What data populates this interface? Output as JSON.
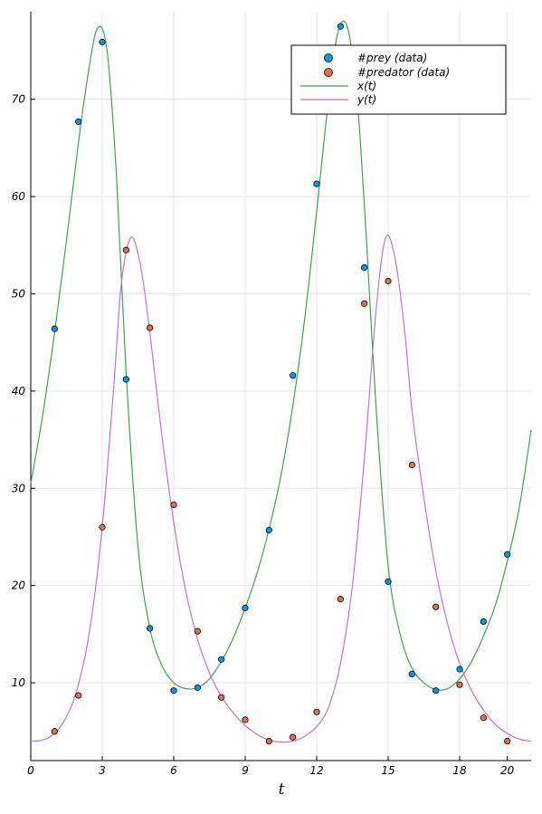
{
  "chart_data": {
    "type": "scatter",
    "xlabel": "t",
    "ylabel": "",
    "xlim": [
      0,
      21
    ],
    "ylim": [
      2,
      79
    ],
    "x_ticks": [
      0,
      3,
      6,
      9,
      12,
      15,
      18,
      20
    ],
    "y_ticks": [
      10,
      20,
      30,
      40,
      50,
      60,
      70
    ],
    "x_tick_labels": [
      "0",
      "3",
      "6",
      "9",
      "12",
      "15",
      "18",
      "20"
    ],
    "y_tick_labels": [
      "10",
      "20",
      "30",
      "40",
      "50",
      "60",
      "70"
    ],
    "grid": true,
    "legend_position": "top-right",
    "series": [
      {
        "name": "#prey (data)",
        "kind": "scatter",
        "color": "#009AF9",
        "x": [
          1,
          2,
          3,
          4,
          5,
          6,
          7,
          8,
          9,
          10,
          11,
          12,
          13,
          14,
          15,
          16,
          17,
          18,
          19,
          20
        ],
        "y": [
          46.4,
          67.7,
          75.9,
          41.2,
          15.6,
          9.2,
          9.5,
          12.4,
          17.7,
          25.7,
          41.6,
          61.3,
          77.5,
          52.7,
          20.4,
          10.9,
          9.2,
          11.4,
          16.3,
          23.2
        ]
      },
      {
        "name": "#predator (data)",
        "kind": "scatter",
        "color": "#E26F46",
        "x": [
          1,
          2,
          3,
          4,
          5,
          6,
          7,
          8,
          9,
          10,
          11,
          12,
          13,
          14,
          15,
          16,
          17,
          18,
          19,
          20
        ],
        "y": [
          5.0,
          8.7,
          26.0,
          54.5,
          46.5,
          28.3,
          15.3,
          8.5,
          6.2,
          4.0,
          4.4,
          7.0,
          18.6,
          49.0,
          51.3,
          32.4,
          17.8,
          9.8,
          6.4,
          4.0
        ]
      },
      {
        "name": "x(t)",
        "kind": "line",
        "color": "#3DA44D",
        "x": [
          0,
          0.5,
          1,
          1.5,
          2,
          2.4,
          2.8,
          3.2,
          3.6,
          4,
          4.5,
          5,
          5.5,
          6,
          6.5,
          7,
          7.5,
          8,
          8.5,
          9,
          9.5,
          10,
          10.5,
          11,
          11.5,
          12,
          12.5,
          12.9,
          13.3,
          13.7,
          14.1,
          14.5,
          15,
          15.5,
          16,
          16.5,
          17,
          17.5,
          18,
          18.5,
          19,
          19.5,
          20,
          20.5,
          21
        ],
        "y": [
          30.5,
          37.5,
          46.0,
          55.5,
          65.5,
          72.5,
          77.3,
          75.0,
          62.0,
          42.0,
          24.0,
          15.6,
          11.8,
          10.0,
          9.4,
          9.5,
          10.4,
          12.2,
          14.6,
          17.7,
          21.3,
          25.8,
          31.3,
          38.5,
          47.5,
          58.5,
          70.0,
          77.0,
          77.3,
          70.0,
          55.0,
          38.0,
          22.0,
          15.0,
          11.5,
          10.0,
          9.3,
          9.4,
          10.4,
          12.2,
          14.8,
          18.0,
          22.5,
          28.0,
          36.0
        ]
      },
      {
        "name": "y(t)",
        "kind": "line",
        "color": "#C271D2",
        "x": [
          0,
          0.5,
          1,
          1.5,
          2,
          2.5,
          3,
          3.5,
          3.8,
          4.2,
          4.6,
          5,
          5.5,
          6,
          6.5,
          7,
          7.5,
          8,
          8.5,
          9,
          9.5,
          10,
          10.5,
          11,
          11.5,
          12,
          12.5,
          13,
          13.5,
          14,
          14.5,
          14.9,
          15.3,
          15.7,
          16,
          16.5,
          17,
          17.5,
          18,
          18.5,
          19,
          19.5,
          20,
          20.5,
          21
        ],
        "y": [
          4.0,
          4.1,
          4.8,
          6.5,
          9.8,
          15.8,
          26.0,
          41.0,
          51.0,
          55.8,
          53.0,
          46.0,
          35.5,
          26.5,
          19.5,
          14.5,
          11.0,
          8.6,
          6.9,
          5.6,
          4.7,
          4.1,
          3.9,
          4.0,
          4.5,
          5.5,
          7.5,
          12.0,
          20.0,
          33.0,
          48.5,
          55.8,
          53.5,
          46.0,
          38.0,
          29.0,
          21.5,
          16.0,
          12.0,
          9.2,
          7.2,
          5.7,
          4.8,
          4.2,
          4.0
        ]
      }
    ]
  }
}
